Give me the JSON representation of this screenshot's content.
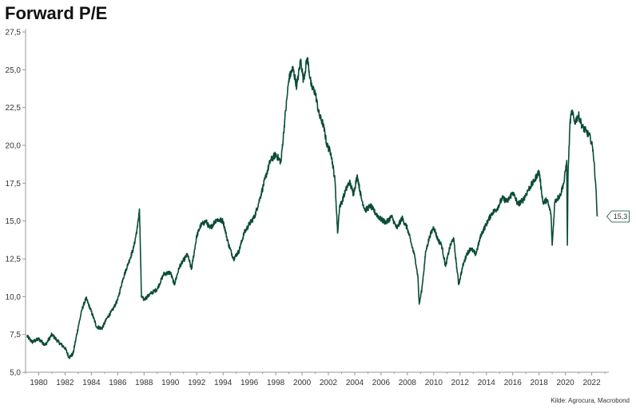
{
  "title": "Forward P/E",
  "source": "Kilde: Agrocura, Macrobond",
  "colors": {
    "line": "#0b4d35",
    "axis": "#999999",
    "text": "#333333"
  },
  "chart_data": {
    "type": "line",
    "title": "Forward P/E",
    "xlabel": "",
    "ylabel": "",
    "xlim": [
      1979.0,
      2023.3
    ],
    "ylim": [
      5.0,
      27.5
    ],
    "grid": false,
    "legend": "none",
    "x_ticks": [
      1980,
      1982,
      1984,
      1986,
      1988,
      1990,
      1992,
      1994,
      1996,
      1998,
      2000,
      2002,
      2004,
      2006,
      2008,
      2010,
      2012,
      2014,
      2016,
      2018,
      2020,
      2022
    ],
    "x_tick_labels": [
      "1980",
      "1982",
      "1984",
      "1986",
      "1988",
      "1990",
      "1992",
      "1994",
      "1996",
      "1998",
      "2000",
      "2002",
      "2004",
      "2006",
      "2008",
      "2010",
      "2012",
      "2014",
      "2016",
      "2018",
      "2020",
      "2022"
    ],
    "y_ticks": [
      5.0,
      7.5,
      10.0,
      12.5,
      15.0,
      17.5,
      20.0,
      22.5,
      25.0,
      27.5
    ],
    "y_tick_labels": [
      "5,0",
      "7,5",
      "10,0",
      "12,5",
      "15,0",
      "17,5",
      "20,0",
      "22,5",
      "25,0",
      "27,5"
    ],
    "end_label": "15,3",
    "series": [
      {
        "x": [
          1979.1,
          1979.5,
          1980.0,
          1980.5,
          1981.0,
          1981.5,
          1982.0,
          1982.3,
          1982.6,
          1983.0,
          1983.3,
          1983.6,
          1984.0,
          1984.4,
          1984.8,
          1985.2,
          1985.6,
          1986.0,
          1986.4,
          1986.8,
          1987.2,
          1987.5,
          1987.65,
          1987.8,
          1988.0,
          1988.5,
          1989.0,
          1989.5,
          1990.0,
          1990.3,
          1990.7,
          1991.0,
          1991.3,
          1991.6,
          1992.0,
          1992.3,
          1992.7,
          1993.0,
          1993.5,
          1994.0,
          1994.4,
          1994.8,
          1995.2,
          1995.6,
          1996.0,
          1996.4,
          1996.8,
          1997.2,
          1997.6,
          1998.0,
          1998.4,
          1998.7,
          1999.0,
          1999.3,
          1999.6,
          1999.9,
          2000.1,
          2000.4,
          2000.7,
          2001.0,
          2001.3,
          2001.6,
          2001.9,
          2002.2,
          2002.5,
          2002.7,
          2002.85,
          2003.0,
          2003.3,
          2003.6,
          2003.9,
          2004.2,
          2004.5,
          2004.8,
          2005.2,
          2005.6,
          2006.0,
          2006.4,
          2006.8,
          2007.2,
          2007.6,
          2008.0,
          2008.3,
          2008.6,
          2008.8,
          2008.9,
          2009.1,
          2009.4,
          2009.7,
          2010.0,
          2010.3,
          2010.6,
          2010.9,
          2011.2,
          2011.5,
          2011.7,
          2011.9,
          2012.2,
          2012.5,
          2012.8,
          2013.2,
          2013.6,
          2014.0,
          2014.4,
          2014.8,
          2015.2,
          2015.6,
          2016.0,
          2016.4,
          2016.8,
          2017.2,
          2017.6,
          2018.0,
          2018.3,
          2018.6,
          2018.9,
          2019.0,
          2019.2,
          2019.6,
          2019.9,
          2020.1,
          2020.15,
          2020.2,
          2020.35,
          2020.5,
          2020.7,
          2021.0,
          2021.3,
          2021.6,
          2021.9,
          2022.1,
          2022.3,
          2022.42
        ],
        "y": [
          7.4,
          7.0,
          7.2,
          6.8,
          7.5,
          7.0,
          6.6,
          6.0,
          6.2,
          8.0,
          9.2,
          9.9,
          9.0,
          8.0,
          7.9,
          8.6,
          9.1,
          9.8,
          11.2,
          12.2,
          13.2,
          14.6,
          15.8,
          10.0,
          9.8,
          10.2,
          10.5,
          11.5,
          11.6,
          10.8,
          12.0,
          12.4,
          12.8,
          11.8,
          14.0,
          14.7,
          15.0,
          14.5,
          15.1,
          15.0,
          13.5,
          12.5,
          13.0,
          14.2,
          14.8,
          15.3,
          16.5,
          17.8,
          19.0,
          19.4,
          18.9,
          21.8,
          24.4,
          25.1,
          23.9,
          25.7,
          24.3,
          25.8,
          23.9,
          23.5,
          22.0,
          21.4,
          20.0,
          19.5,
          17.7,
          14.2,
          16.0,
          16.2,
          17.0,
          17.6,
          16.8,
          18.0,
          16.5,
          15.7,
          16.0,
          15.5,
          15.1,
          14.9,
          15.3,
          14.5,
          15.2,
          14.5,
          13.5,
          12.5,
          11.3,
          9.5,
          10.5,
          13.0,
          14.0,
          14.6,
          13.8,
          13.4,
          12.0,
          13.2,
          13.9,
          12.3,
          10.8,
          12.0,
          12.8,
          13.2,
          12.8,
          14.1,
          14.8,
          15.5,
          15.8,
          16.5,
          16.3,
          16.9,
          16.1,
          16.4,
          17.1,
          17.6,
          18.3,
          16.2,
          16.4,
          15.5,
          13.4,
          16.3,
          16.7,
          17.6,
          19.0,
          13.4,
          18.0,
          21.5,
          22.3,
          21.5,
          22.0,
          21.2,
          20.9,
          20.5,
          19.7,
          17.5,
          15.3
        ]
      }
    ]
  }
}
